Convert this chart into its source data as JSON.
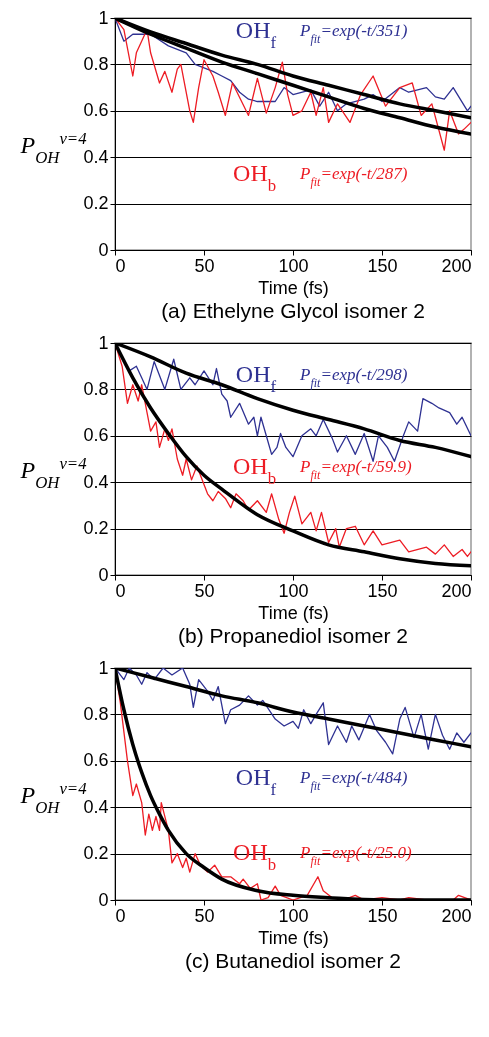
{
  "chart_data": [
    {
      "type": "line",
      "title": "(a) Ethelyne Glycol isomer 2",
      "xlabel": "Time (fs)",
      "ylabel": "P$_{OH}$$^{v=4}$",
      "xlim": [
        0,
        200
      ],
      "xticks": [
        0,
        50,
        100,
        150,
        200
      ],
      "ylim": [
        0,
        1
      ],
      "yticks": [
        0,
        0.2,
        0.4,
        0.6,
        0.8,
        1
      ],
      "grid": "y",
      "series": [
        {
          "name": "OH$_{f}$",
          "color": "#2e3192",
          "x": [
            0,
            5,
            10,
            20,
            30,
            40,
            45,
            55,
            60,
            65,
            70,
            75,
            80,
            90,
            95,
            100,
            110,
            115,
            120,
            125,
            130,
            140,
            145,
            150,
            160,
            165,
            175,
            180,
            185,
            190,
            198,
            200
          ],
          "values": [
            1,
            0.9,
            0.93,
            0.93,
            0.88,
            0.85,
            0.8,
            0.77,
            0.75,
            0.73,
            0.68,
            0.65,
            0.64,
            0.64,
            0.7,
            0.67,
            0.69,
            0.62,
            0.68,
            0.6,
            0.63,
            0.65,
            0.67,
            0.64,
            0.7,
            0.68,
            0.7,
            0.66,
            0.65,
            0.7,
            0.6,
            0.62
          ]
        },
        {
          "name": "OH$_{b}$",
          "color": "#ed1c24",
          "x": [
            0,
            5,
            10,
            12,
            18,
            20,
            25,
            28,
            32,
            35,
            37,
            42,
            44,
            47,
            50,
            55,
            58,
            62,
            66,
            75,
            80,
            85,
            90,
            94,
            97,
            100,
            105,
            110,
            113,
            117,
            120,
            125,
            132,
            138,
            145,
            152,
            160,
            167,
            172,
            178,
            185,
            188,
            193,
            196,
            200
          ],
          "values": [
            1,
            0.95,
            0.75,
            0.85,
            0.95,
            0.85,
            0.72,
            0.77,
            0.68,
            0.78,
            0.8,
            0.6,
            0.55,
            0.7,
            0.82,
            0.75,
            0.68,
            0.58,
            0.72,
            0.58,
            0.74,
            0.59,
            0.7,
            0.81,
            0.67,
            0.58,
            0.6,
            0.68,
            0.58,
            0.7,
            0.55,
            0.63,
            0.55,
            0.67,
            0.75,
            0.62,
            0.7,
            0.72,
            0.58,
            0.63,
            0.43,
            0.6,
            0.5,
            0.52,
            0.55
          ]
        },
        {
          "color": "#000000",
          "x": [
            0,
            20,
            40,
            60,
            80,
            100,
            120,
            140,
            160,
            180,
            200
          ],
          "values": [
            1,
            0.94,
            0.89,
            0.84,
            0.8,
            0.75,
            0.71,
            0.67,
            0.63,
            0.6,
            0.57
          ]
        },
        {
          "color": "#000000",
          "x": [
            0,
            20,
            40,
            60,
            80,
            100,
            120,
            140,
            160,
            180,
            200
          ],
          "values": [
            1,
            0.93,
            0.87,
            0.81,
            0.76,
            0.71,
            0.66,
            0.61,
            0.57,
            0.53,
            0.5
          ]
        }
      ],
      "annotations": [
        "P$_{fit}$=exp(-t/351)",
        "P$_{fit}$=exp(-t/287)"
      ]
    },
    {
      "type": "line",
      "title": "(b) Propanediol isomer 2",
      "xlabel": "Time (fs)",
      "ylabel": "P$_{OH}$$^{v=4}$",
      "xlim": [
        0,
        200
      ],
      "xticks": [
        0,
        50,
        100,
        150,
        200
      ],
      "ylim": [
        0,
        1
      ],
      "yticks": [
        0,
        0.2,
        0.4,
        0.6,
        0.8,
        1
      ],
      "grid": "y",
      "series": [
        {
          "name": "OH$_{f}$",
          "color": "#2e3192",
          "x": [
            0,
            8,
            12,
            15,
            18,
            22,
            28,
            33,
            37,
            42,
            45,
            50,
            55,
            57,
            60,
            63,
            65,
            70,
            75,
            78,
            80,
            82,
            85,
            88,
            91,
            93,
            96,
            100,
            105,
            110,
            113,
            117,
            122,
            125,
            130,
            135,
            140,
            145,
            148,
            153,
            157,
            162,
            165,
            170,
            173,
            178,
            182,
            188,
            192,
            195,
            200
          ],
          "values": [
            1,
            0.88,
            0.9,
            0.85,
            0.8,
            0.92,
            0.8,
            0.93,
            0.8,
            0.85,
            0.82,
            0.88,
            0.82,
            0.89,
            0.78,
            0.75,
            0.68,
            0.74,
            0.65,
            0.68,
            0.6,
            0.68,
            0.6,
            0.52,
            0.55,
            0.61,
            0.55,
            0.51,
            0.6,
            0.63,
            0.6,
            0.67,
            0.59,
            0.53,
            0.6,
            0.52,
            0.61,
            0.49,
            0.6,
            0.55,
            0.49,
            0.6,
            0.66,
            0.62,
            0.76,
            0.74,
            0.72,
            0.7,
            0.65,
            0.68,
            0.6
          ]
        },
        {
          "name": "OH$_{b}$",
          "color": "#ed1c24",
          "x": [
            0,
            4,
            7,
            10,
            13,
            15,
            18,
            20,
            23,
            25,
            28,
            30,
            32,
            35,
            38,
            40,
            43,
            46,
            50,
            52,
            55,
            58,
            62,
            65,
            68,
            72,
            75,
            80,
            85,
            88,
            92,
            95,
            98,
            101,
            105,
            110,
            113,
            116,
            120,
            124,
            126,
            130,
            135,
            140,
            145,
            150,
            160,
            165,
            175,
            180,
            185,
            190,
            195,
            198,
            200
          ],
          "values": [
            1,
            0.9,
            0.74,
            0.82,
            0.75,
            0.82,
            0.7,
            0.62,
            0.66,
            0.55,
            0.63,
            0.58,
            0.63,
            0.5,
            0.43,
            0.5,
            0.41,
            0.47,
            0.39,
            0.35,
            0.32,
            0.36,
            0.33,
            0.29,
            0.35,
            0.32,
            0.28,
            0.32,
            0.27,
            0.35,
            0.24,
            0.18,
            0.27,
            0.34,
            0.22,
            0.27,
            0.19,
            0.27,
            0.14,
            0.2,
            0.12,
            0.2,
            0.21,
            0.13,
            0.19,
            0.13,
            0.15,
            0.1,
            0.12,
            0.09,
            0.13,
            0.08,
            0.11,
            0.08,
            0.1
          ]
        },
        {
          "color": "#000000",
          "x": [
            0,
            20,
            40,
            60,
            80,
            100,
            120,
            140,
            160,
            180,
            200
          ],
          "values": [
            1,
            0.94,
            0.87,
            0.82,
            0.76,
            0.71,
            0.67,
            0.63,
            0.58,
            0.55,
            0.51
          ]
        },
        {
          "color": "#000000",
          "x": [
            0,
            10,
            20,
            30,
            40,
            50,
            60,
            80,
            100,
            120,
            140,
            160,
            180,
            200
          ],
          "values": [
            1,
            0.85,
            0.72,
            0.61,
            0.51,
            0.43,
            0.37,
            0.26,
            0.19,
            0.13,
            0.1,
            0.07,
            0.05,
            0.04
          ]
        }
      ],
      "annotations": [
        "P$_{fit}$=exp(-t/298)",
        "P$_{fit}$=exp(-t/59.9)"
      ]
    },
    {
      "type": "line",
      "title": "(c) Butanediol isomer 2",
      "xlabel": "Time (fs)",
      "ylabel": "P$_{OH}$$^{v=4}$",
      "xlim": [
        0,
        200
      ],
      "xticks": [
        0,
        50,
        100,
        150,
        200
      ],
      "ylim": [
        0,
        1
      ],
      "yticks": [
        0,
        0.2,
        0.4,
        0.6,
        0.8,
        1
      ],
      "grid": "y",
      "series": [
        {
          "name": "OH$_{f}$",
          "color": "#2e3192",
          "x": [
            0,
            5,
            8,
            12,
            15,
            18,
            22,
            27,
            32,
            38,
            42,
            44,
            47,
            52,
            55,
            58,
            62,
            65,
            70,
            75,
            80,
            83,
            90,
            95,
            100,
            103,
            106,
            110,
            113,
            117,
            120,
            125,
            130,
            133,
            137,
            143,
            147,
            152,
            156,
            160,
            163,
            168,
            172,
            176,
            180,
            184,
            188,
            192,
            196,
            200
          ],
          "values": [
            1,
            0.95,
            1,
            0.97,
            0.93,
            0.98,
            0.95,
            1,
            0.97,
            1,
            0.93,
            0.83,
            0.95,
            0.9,
            0.86,
            0.92,
            0.76,
            0.82,
            0.84,
            0.88,
            0.84,
            0.86,
            0.78,
            0.75,
            0.77,
            0.74,
            0.82,
            0.76,
            0.8,
            0.85,
            0.67,
            0.75,
            0.68,
            0.75,
            0.69,
            0.8,
            0.73,
            0.68,
            0.63,
            0.78,
            0.83,
            0.7,
            0.8,
            0.65,
            0.8,
            0.71,
            0.65,
            0.72,
            0.68,
            0.72
          ]
        },
        {
          "name": "OH$_{b}$",
          "color": "#ed1c24",
          "x": [
            0,
            3,
            7,
            10,
            12,
            15,
            17,
            19,
            21,
            23,
            25,
            26,
            30,
            32,
            35,
            38,
            40,
            42,
            45,
            48,
            52,
            56,
            60,
            65,
            70,
            72,
            76,
            80,
            82,
            86,
            90,
            93,
            100,
            108,
            114,
            117,
            122,
            128,
            135,
            140,
            150,
            160,
            165,
            175,
            190,
            193,
            200
          ],
          "values": [
            1,
            0.85,
            0.6,
            0.45,
            0.5,
            0.42,
            0.28,
            0.37,
            0.3,
            0.36,
            0.3,
            0.42,
            0.3,
            0.16,
            0.2,
            0.14,
            0.18,
            0.12,
            0.2,
            0.15,
            0.12,
            0.15,
            0.1,
            0.1,
            0.07,
            0.09,
            0.05,
            0.07,
            0,
            0.01,
            0.06,
            0.02,
            0,
            0.02,
            0.1,
            0.04,
            0.01,
            0,
            0.02,
            0,
            0.01,
            0,
            0.01,
            0,
            0,
            0.02,
            0
          ]
        },
        {
          "color": "#000000",
          "x": [
            0,
            20,
            40,
            60,
            80,
            100,
            120,
            140,
            160,
            180,
            200
          ],
          "values": [
            1,
            0.96,
            0.92,
            0.88,
            0.85,
            0.81,
            0.78,
            0.75,
            0.72,
            0.69,
            0.66
          ]
        },
        {
          "color": "#000000",
          "x": [
            0,
            5,
            10,
            15,
            20,
            25,
            30,
            40,
            50,
            60,
            80,
            100,
            120,
            150,
            200
          ],
          "values": [
            1,
            0.82,
            0.67,
            0.55,
            0.45,
            0.37,
            0.3,
            0.2,
            0.14,
            0.09,
            0.04,
            0.02,
            0.01,
            0,
            0
          ]
        }
      ],
      "annotations": [
        "P$_{fit}$=exp(-t/484)",
        "P$_{fit}$=exp(-t/25.0)"
      ]
    }
  ]
}
